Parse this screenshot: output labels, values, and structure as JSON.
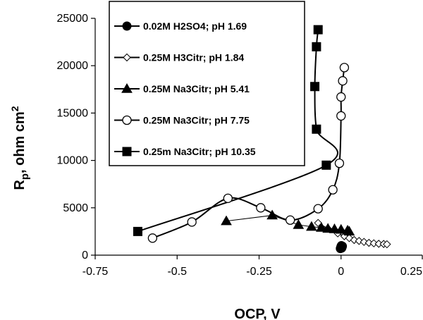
{
  "chart_data": {
    "type": "scatter",
    "xlabel": "OCP, V",
    "ylabel_main": "R",
    "ylabel_sub": "p",
    "ylabel_rest": ", ohm cm",
    "ylabel_sup": "2",
    "xlim": [
      -0.75,
      0.25
    ],
    "ylim": [
      0,
      25000
    ],
    "x_ticks": [
      -0.75,
      -0.5,
      -0.25,
      0,
      0.25
    ],
    "x_tick_labels": [
      "-0.75",
      "-0.5",
      "-0.25",
      "0",
      "0.25"
    ],
    "y_ticks": [
      0,
      5000,
      10000,
      15000,
      20000,
      25000
    ],
    "y_tick_labels": [
      "0",
      "5000",
      "10000",
      "15000",
      "20000",
      "25000"
    ],
    "grid": false,
    "legend_placement": "top-center",
    "series": [
      {
        "name": "0.02M H2SO4; pH 1.69",
        "marker": "circle-filled",
        "color": "#000000",
        "line": "smooth",
        "line_width": 2,
        "x": [
          -0.002,
          -0.001,
          0.0,
          0.001,
          0.002,
          0.003,
          0.004
        ],
        "y": [
          700,
          800,
          900,
          1000,
          750,
          850,
          950
        ]
      },
      {
        "name": "0.25M H3Citr; pH 1.84",
        "marker": "diamond-open",
        "color": "#000000",
        "line": "smooth",
        "line_width": 1.5,
        "x": [
          -0.07,
          -0.04,
          -0.01,
          0.01,
          0.025,
          0.04,
          0.055,
          0.07,
          0.085,
          0.1,
          0.115,
          0.13,
          0.14
        ],
        "y": [
          3400,
          2800,
          2300,
          2000,
          1800,
          1600,
          1500,
          1400,
          1300,
          1250,
          1200,
          1180,
          1150
        ]
      },
      {
        "name": "0.25M Na3Citr; pH 5.41",
        "marker": "triangle-filled",
        "color": "#000000",
        "line": "straight",
        "line_width": 1,
        "x": [
          -0.35,
          -0.21,
          -0.13,
          -0.09,
          -0.06,
          -0.04,
          -0.02,
          0.0,
          0.02,
          0.025
        ],
        "y": [
          3600,
          4200,
          3200,
          3000,
          2900,
          2800,
          2750,
          2700,
          2600,
          2500
        ]
      },
      {
        "name": "0.25M Na3Citr; pH 7.75",
        "marker": "circle-open",
        "color": "#000000",
        "line": "smooth",
        "line_width": 2,
        "x": [
          -0.575,
          -0.455,
          -0.345,
          -0.245,
          -0.155,
          -0.07,
          -0.025,
          -0.005,
          0.0,
          0.0,
          0.005,
          0.01
        ],
        "y": [
          1800,
          3500,
          6000,
          5000,
          3700,
          4900,
          6900,
          9700,
          14700,
          16700,
          18400,
          19800
        ]
      },
      {
        "name": "0.25m Na3Citr; pH 10.35",
        "marker": "square-filled",
        "color": "#000000",
        "line": "smooth",
        "line_width": 2,
        "x": [
          -0.62,
          -0.045,
          -0.075,
          -0.08,
          -0.075,
          -0.07
        ],
        "y": [
          2500,
          9500,
          13300,
          17800,
          22000,
          23800
        ]
      }
    ]
  }
}
